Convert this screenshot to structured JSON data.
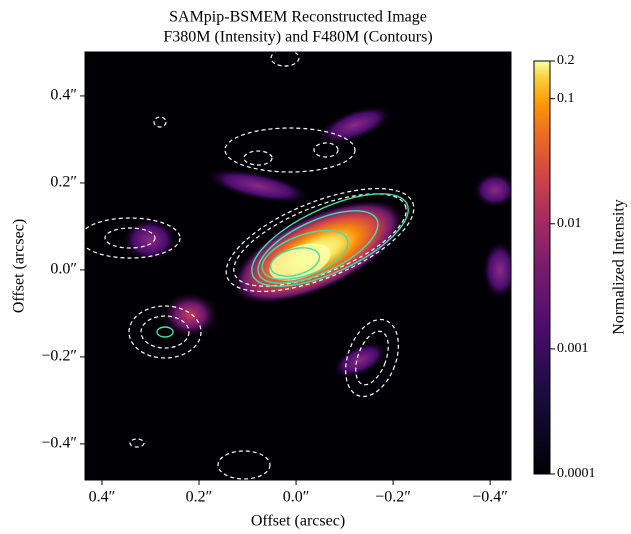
{
  "chart_data": {
    "type": "image",
    "title": "SAMpip-BSMEM Reconstructed Image",
    "subtitle": "F380M (Intensity) and F480M (Contours)",
    "x_label": "Offset (arcsec)",
    "y_label": "Offset (arcsec)",
    "xlim": [
      0.435,
      -0.443
    ],
    "ylim": [
      -0.483,
      0.501
    ],
    "xticks": [
      {
        "value": 0.4,
        "label": "0.4″"
      },
      {
        "value": 0.2,
        "label": "0.2″"
      },
      {
        "value": 0,
        "label": "0.0″"
      },
      {
        "value": -0.2,
        "label": "−0.2″"
      },
      {
        "value": -0.4,
        "label": "−0.4″"
      }
    ],
    "yticks": [
      {
        "value": 0.4,
        "label": "0.4″"
      },
      {
        "value": 0.2,
        "label": "0.2″"
      },
      {
        "value": 0,
        "label": "0.0″"
      },
      {
        "value": -0.2,
        "label": "−0.2″"
      },
      {
        "value": -0.4,
        "label": "−0.4″"
      }
    ],
    "colorbar": {
      "label": "Normalized Intensity",
      "lim": [
        0.0001,
        0.2
      ],
      "scale": "log",
      "ticks": [
        0.0001,
        0.001,
        0.01,
        0.1,
        0.2
      ]
    }
  }
}
